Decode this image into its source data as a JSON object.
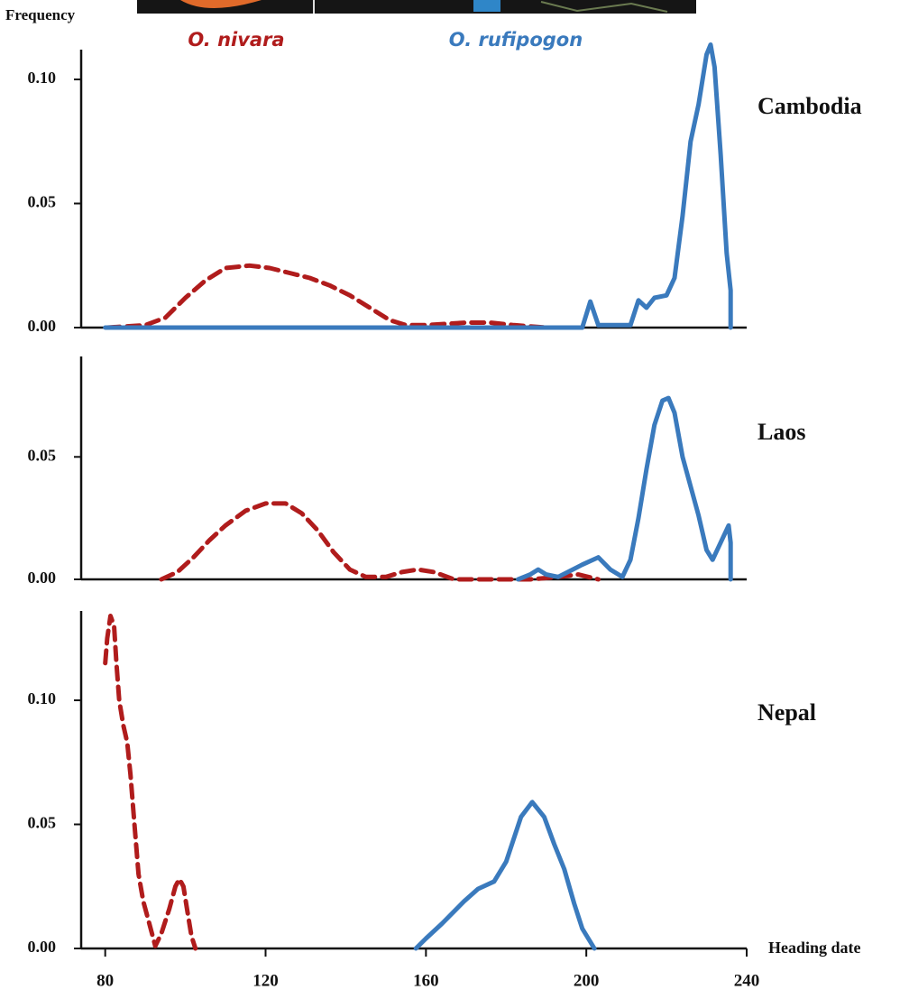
{
  "chart_data": {
    "type": "line",
    "y_label": "Frequency",
    "x_label": "Heading date",
    "xlim": [
      74,
      240
    ],
    "xticks": [
      80,
      120,
      160,
      200,
      240
    ],
    "series": [
      {
        "name": "O. nivara",
        "color": "#b01c1c",
        "dashed": true
      },
      {
        "name": "O. rufipogon",
        "color": "#3a7abd",
        "dashed": false
      }
    ],
    "panels": [
      {
        "title": "Cambodia",
        "ylim": [
          0,
          0.112
        ],
        "yticks": [
          {
            "value": 0,
            "label": "0.00"
          },
          {
            "value": 0.05,
            "label": "0.05"
          },
          {
            "value": 0.1,
            "label": "0.10"
          }
        ],
        "series": [
          {
            "x": [
              80.5,
              90,
              95,
              100,
              105,
              110,
              116,
              121,
              126,
              131,
              136,
              141,
              146,
              151,
              155,
              160,
              170,
              176,
              182,
              190
            ],
            "values": [
              0,
              0.001,
              0.004,
              0.012,
              0.019,
              0.024,
              0.025,
              0.024,
              0.022,
              0.02,
              0.017,
              0.013,
              0.008,
              0.003,
              0.001,
              0.001,
              0.002,
              0.002,
              0.001,
              0
            ]
          },
          {
            "x": [
              80,
              199,
              201,
              203,
              211,
              213,
              215,
              217,
              220,
              222,
              224,
              226,
              228,
              230,
              231,
              232,
              233.5,
              235,
              236,
              236
            ],
            "values": [
              0,
              0,
              0.0105,
              0.001,
              0.001,
              0.011,
              0.008,
              0.012,
              0.013,
              0.02,
              0.045,
              0.075,
              0.09,
              0.11,
              0.114,
              0.105,
              0.07,
              0.03,
              0.015,
              0
            ]
          }
        ]
      },
      {
        "title": "Laos",
        "ylim": [
          0,
          0.091
        ],
        "yticks": [
          {
            "value": 0,
            "label": "0.00"
          },
          {
            "value": 0.05,
            "label": "0.05"
          }
        ],
        "series": [
          {
            "x": [
              94,
              98,
              102,
              106,
              110,
              115,
              120,
              125,
              129,
              133,
              137,
              141,
              145,
              150,
              154,
              158,
              162,
              167,
              186,
              193,
              198,
              203
            ],
            "values": [
              0,
              0.003,
              0.009,
              0.016,
              0.022,
              0.028,
              0.031,
              0.031,
              0.027,
              0.02,
              0.011,
              0.004,
              0.001,
              0.001,
              0.003,
              0.004,
              0.003,
              0,
              0,
              0.001,
              0.002,
              0
            ]
          },
          {
            "x": [
              183,
              186,
              188,
              190,
              193,
              199,
              203,
              206,
              209,
              211,
              213,
              215,
              217,
              219,
              220.5,
              222,
              224,
              226,
              228,
              230,
              231.5,
              233.5,
              235.5,
              236,
              236
            ],
            "values": [
              0,
              0.002,
              0.004,
              0.002,
              0.001,
              0.006,
              0.009,
              0.004,
              0.001,
              0.008,
              0.025,
              0.045,
              0.063,
              0.073,
              0.074,
              0.068,
              0.05,
              0.038,
              0.026,
              0.012,
              0.008,
              0.015,
              0.022,
              0.015,
              0
            ]
          }
        ]
      },
      {
        "title": "Nepal",
        "ylim": [
          0,
          0.136
        ],
        "yticks": [
          {
            "value": 0,
            "label": "0.00"
          },
          {
            "value": 0.05,
            "label": "0.05"
          },
          {
            "value": 0.1,
            "label": "0.10"
          }
        ],
        "series": [
          {
            "x": [
              80,
              80.5,
              81.3,
              82.2,
              82.8,
              83.5,
              84.5,
              85.5,
              86.3,
              87.3,
              88.3,
              89.5,
              91,
              92.5,
              94,
              96,
              97.5,
              98.5,
              99.5,
              100.5,
              101.5,
              102.5
            ],
            "values": [
              0.115,
              0.125,
              0.134,
              0.13,
              0.115,
              0.1,
              0.09,
              0.083,
              0.07,
              0.05,
              0.03,
              0.019,
              0.01,
              0.001,
              0.006,
              0.016,
              0.025,
              0.028,
              0.025,
              0.015,
              0.005,
              0
            ]
          },
          {
            "x": [
              157.5,
              160,
              164,
              169.5,
              173,
              177,
              180,
              183.7,
              186.5,
              189.5,
              192,
              194.5,
              197,
              199,
              202
            ],
            "values": [
              0,
              0.004,
              0.01,
              0.019,
              0.024,
              0.027,
              0.035,
              0.053,
              0.059,
              0.053,
              0.042,
              0.032,
              0.018,
              0.008,
              0
            ]
          }
        ]
      }
    ]
  }
}
